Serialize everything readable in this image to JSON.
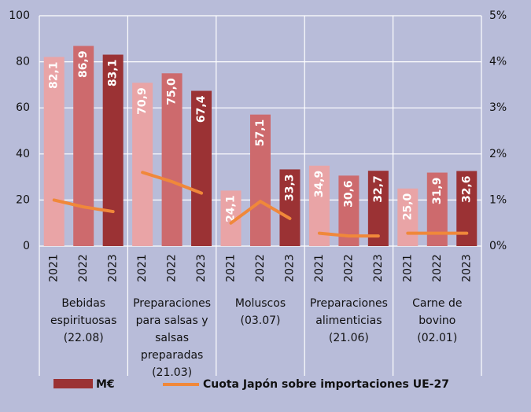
{
  "chart_data": {
    "type": "bar",
    "categories": [
      "2021",
      "2022",
      "2023",
      "2021",
      "2022",
      "2023",
      "2021",
      "2022",
      "2023",
      "2021",
      "2022",
      "2023",
      "2021",
      "2022",
      "2023"
    ],
    "groups": [
      {
        "label": [
          "Bebidas",
          "espirituosas",
          "(22.08)"
        ]
      },
      {
        "label": [
          "Preparaciones",
          "para salsas y",
          "salsas",
          "preparadas",
          "(21.03)"
        ]
      },
      {
        "label": [
          "Moluscos",
          "(03.07)"
        ]
      },
      {
        "label": [
          "Preparaciones",
          "alimenticias",
          "(21.06)"
        ]
      },
      {
        "label": [
          "Carne de",
          "bovino",
          "(02.01)"
        ]
      }
    ],
    "series": [
      {
        "name": "M€",
        "color": "#9b3234",
        "bar_colors": [
          "#e9a4a6",
          "#cd6a6d",
          "#9b3234"
        ],
        "values": [
          82.1,
          86.9,
          83.1,
          70.9,
          75.0,
          67.4,
          24.1,
          57.1,
          33.3,
          34.9,
          30.6,
          32.7,
          25.0,
          31.9,
          32.6
        ],
        "value_labels": [
          "82,1",
          "86,9",
          "83,1",
          "70,9",
          "75,0",
          "67,4",
          "24,1",
          "57,1",
          "33,3",
          "34,9",
          "30,6",
          "32,7",
          "25,0",
          "31,9",
          "32,6"
        ]
      },
      {
        "name": "Cuota Japón sobre importaciones UE-27",
        "color": "#f0883a",
        "axis": "y2",
        "values": [
          1.0,
          0.85,
          0.75,
          1.6,
          1.4,
          1.15,
          0.5,
          0.97,
          0.6,
          0.28,
          0.22,
          0.22,
          0.28,
          0.28,
          0.28
        ]
      }
    ],
    "ylim": [
      0,
      100
    ],
    "yticks": [
      0,
      20,
      40,
      60,
      80,
      100
    ],
    "y2lim": [
      0,
      5
    ],
    "y2ticks": [
      {
        "value": 0,
        "label": "0%"
      },
      {
        "value": 1,
        "label": "1%"
      },
      {
        "value": 2,
        "label": "2%"
      },
      {
        "value": 3,
        "label": "3%"
      },
      {
        "value": 4,
        "label": "4%"
      },
      {
        "value": 5,
        "label": "5%"
      }
    ],
    "grid": true
  }
}
